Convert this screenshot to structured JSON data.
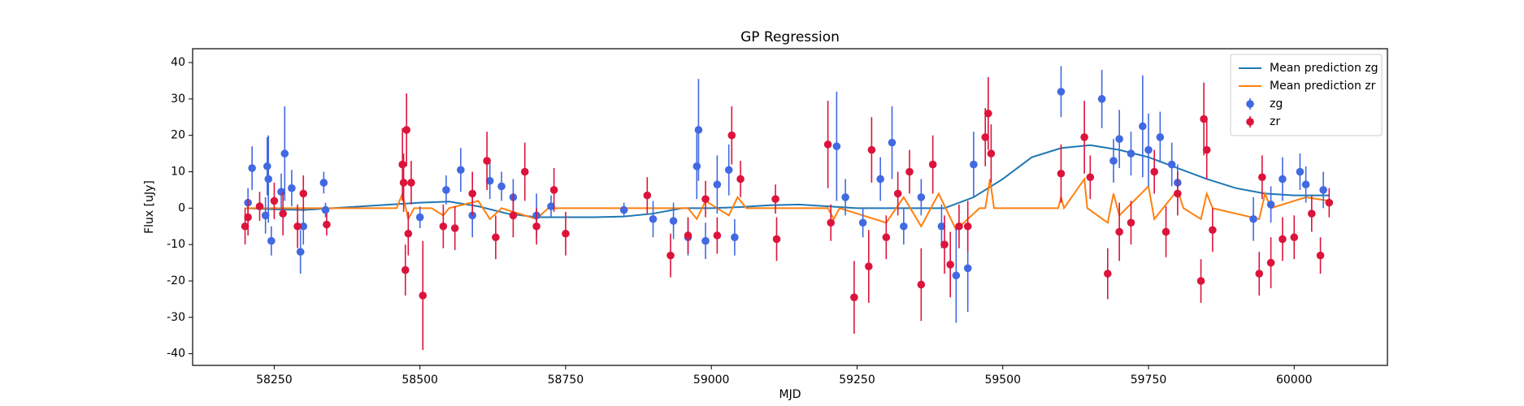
{
  "chart_data": {
    "type": "errorbar",
    "title": "GP Regression",
    "x_label": "MJD",
    "y_label": "Flux [uJy]",
    "xlim": [
      58110,
      60160
    ],
    "ylim": [
      -43.2,
      43.8
    ],
    "xticks": [
      58250,
      58500,
      58750,
      59000,
      59250,
      59500,
      59750,
      60000
    ],
    "yticks": [
      -40,
      -30,
      -20,
      -10,
      0,
      10,
      20,
      30,
      40
    ],
    "legend": "upper right",
    "series": [
      {
        "name": "Mean prediction zg",
        "type": "line",
        "color": "#1f77b4",
        "x": [
          58200,
          58250,
          58300,
          58350,
          58400,
          58450,
          58500,
          58550,
          58600,
          58650,
          58700,
          58750,
          58800,
          58850,
          58900,
          58950,
          59000,
          59050,
          59100,
          59150,
          59200,
          59250,
          59300,
          59350,
          59400,
          59450,
          59500,
          59550,
          59600,
          59650,
          59700,
          59750,
          59800,
          59850,
          59900,
          59950,
          60000,
          60060
        ],
        "values": [
          0,
          -0.3,
          -0.5,
          0,
          0.5,
          1,
          1.5,
          1.8,
          0.5,
          -1.5,
          -2.5,
          -2.5,
          -2.5,
          -2.3,
          -1.5,
          0,
          0,
          0.3,
          0.8,
          1,
          0.5,
          0,
          0,
          0,
          0,
          3,
          8,
          14,
          16.5,
          17.3,
          16,
          14,
          11,
          8,
          5.5,
          4,
          3.5,
          3.5
        ]
      },
      {
        "name": "Mean prediction zr",
        "type": "line",
        "color": "#ff7f0e",
        "x": [
          58200,
          58350,
          58460,
          58470,
          58480,
          58490,
          58520,
          58540,
          58550,
          58600,
          58620,
          58640,
          58700,
          58720,
          58960,
          58975,
          58990,
          59030,
          59045,
          59060,
          59200,
          59210,
          59220,
          59300,
          59330,
          59360,
          59390,
          59420,
          59440,
          59460,
          59470,
          59478,
          59485,
          59595,
          59600,
          59605,
          59640,
          59645,
          59680,
          59690,
          59700,
          59750,
          59760,
          59800,
          59810,
          59840,
          59850,
          59860,
          59940,
          59950,
          59960,
          60020,
          60060
        ],
        "values": [
          0,
          0,
          0,
          4,
          -3,
          0,
          0,
          -2,
          0,
          2,
          -3,
          0,
          -3,
          0,
          0,
          -3,
          2,
          -2,
          3,
          0,
          0,
          -3,
          0,
          -4,
          3,
          -5,
          4,
          -6,
          -3,
          0,
          0,
          8,
          0,
          0,
          3,
          0,
          8,
          0,
          -4,
          4,
          -2,
          6,
          -3,
          5,
          0,
          -3,
          4,
          0,
          -3,
          4,
          0,
          3,
          2
        ]
      },
      {
        "name": "zg",
        "type": "errorbar",
        "color": "#4169e1",
        "x": [
          58205,
          58212,
          58235,
          58238,
          58240,
          58245,
          58262,
          58268,
          58280,
          58295,
          58300,
          58335,
          58338,
          58500,
          58545,
          58570,
          58590,
          58620,
          58640,
          58660,
          58700,
          58725,
          58850,
          58900,
          58935,
          58960,
          58975,
          58978,
          58990,
          59010,
          59030,
          59040,
          59215,
          59230,
          59260,
          59290,
          59310,
          59330,
          59360,
          59395,
          59420,
          59440,
          59450,
          59600,
          59670,
          59690,
          59700,
          59720,
          59740,
          59750,
          59770,
          59790,
          59800,
          59930,
          59960,
          59980,
          60010,
          60020,
          60050
        ],
        "values": [
          1.5,
          11,
          -2,
          11.5,
          8,
          -9,
          4.5,
          15,
          5.5,
          -12,
          -5,
          7,
          -0.5,
          -2.5,
          5,
          10.5,
          -2,
          7.5,
          6,
          3,
          -2,
          0.5,
          -0.5,
          -3,
          -3.5,
          -8,
          11.5,
          21.5,
          -9,
          6.5,
          10.5,
          -8,
          17,
          3,
          -4,
          8,
          18,
          -5,
          3,
          -5,
          -18.5,
          -16.5,
          12,
          32,
          30,
          13,
          19,
          15,
          22.5,
          16,
          19.5,
          12,
          7,
          -3,
          1,
          8,
          10,
          6.5,
          5
        ],
        "errors": [
          4,
          6,
          5,
          8,
          12,
          4,
          5,
          13,
          5,
          6,
          5,
          3,
          2,
          3,
          4,
          6,
          6,
          5,
          4,
          5,
          6,
          3,
          2,
          5,
          5,
          5,
          9,
          14,
          5,
          8,
          7,
          5,
          15,
          5,
          4,
          6,
          10,
          5,
          5,
          6,
          13,
          12,
          9,
          7,
          8,
          6,
          8,
          6,
          14,
          10,
          7,
          6,
          5,
          6,
          5,
          6,
          5,
          5,
          5
        ]
      },
      {
        "name": "zr",
        "type": "errorbar",
        "color": "#dc143c",
        "x": [
          58200,
          58205,
          58225,
          58250,
          58265,
          58290,
          58300,
          58340,
          58470,
          58472,
          58475,
          58477,
          58480,
          58485,
          58505,
          58540,
          58560,
          58590,
          58615,
          58630,
          58660,
          58680,
          58700,
          58730,
          58750,
          58890,
          58930,
          58960,
          58990,
          59010,
          59035,
          59050,
          59110,
          59112,
          59200,
          59205,
          59245,
          59270,
          59275,
          59300,
          59320,
          59340,
          59360,
          59380,
          59400,
          59410,
          59425,
          59440,
          59470,
          59475,
          59480,
          59600,
          59640,
          59650,
          59680,
          59700,
          59720,
          59760,
          59780,
          59800,
          59840,
          59845,
          59850,
          59860,
          59940,
          59945,
          59960,
          59980,
          60000,
          60030,
          60045,
          60060
        ],
        "values": [
          -5,
          -2.5,
          0.5,
          2,
          -1.5,
          -5,
          4,
          -4.5,
          12,
          7,
          -17,
          21.5,
          -7,
          7,
          -24,
          -5,
          -5.5,
          4,
          13,
          -8,
          -2,
          10,
          -5,
          5,
          -7,
          3.5,
          -13,
          -7.5,
          2.5,
          -7.5,
          20,
          8,
          2.5,
          -8.5,
          17.5,
          -4,
          -24.5,
          -16,
          16,
          -8,
          4,
          10,
          -21,
          12,
          -10,
          -15.5,
          -5,
          -5,
          19.5,
          26,
          15,
          9.5,
          19.5,
          8.5,
          -18,
          -6.5,
          -4,
          10,
          -6.5,
          4,
          -20,
          24.5,
          16,
          -6,
          -18,
          8.5,
          -15,
          -8.5,
          -8,
          -1.5,
          -13,
          1.5
        ],
        "errors": [
          5,
          5,
          4,
          5,
          6,
          6,
          5,
          3,
          10,
          8,
          7,
          10,
          6,
          6,
          15,
          6,
          6,
          6,
          8,
          6,
          6,
          8,
          5,
          6,
          6,
          5,
          6,
          5,
          5,
          5,
          8,
          5,
          4,
          6,
          12,
          5,
          10,
          10,
          9,
          6,
          6,
          6,
          10,
          8,
          8,
          9,
          6,
          7,
          8,
          10,
          8,
          8,
          10,
          6,
          7,
          8,
          6,
          6,
          7,
          6,
          6,
          10,
          8,
          6,
          6,
          6,
          7,
          6,
          6,
          5,
          5,
          4
        ]
      }
    ]
  }
}
